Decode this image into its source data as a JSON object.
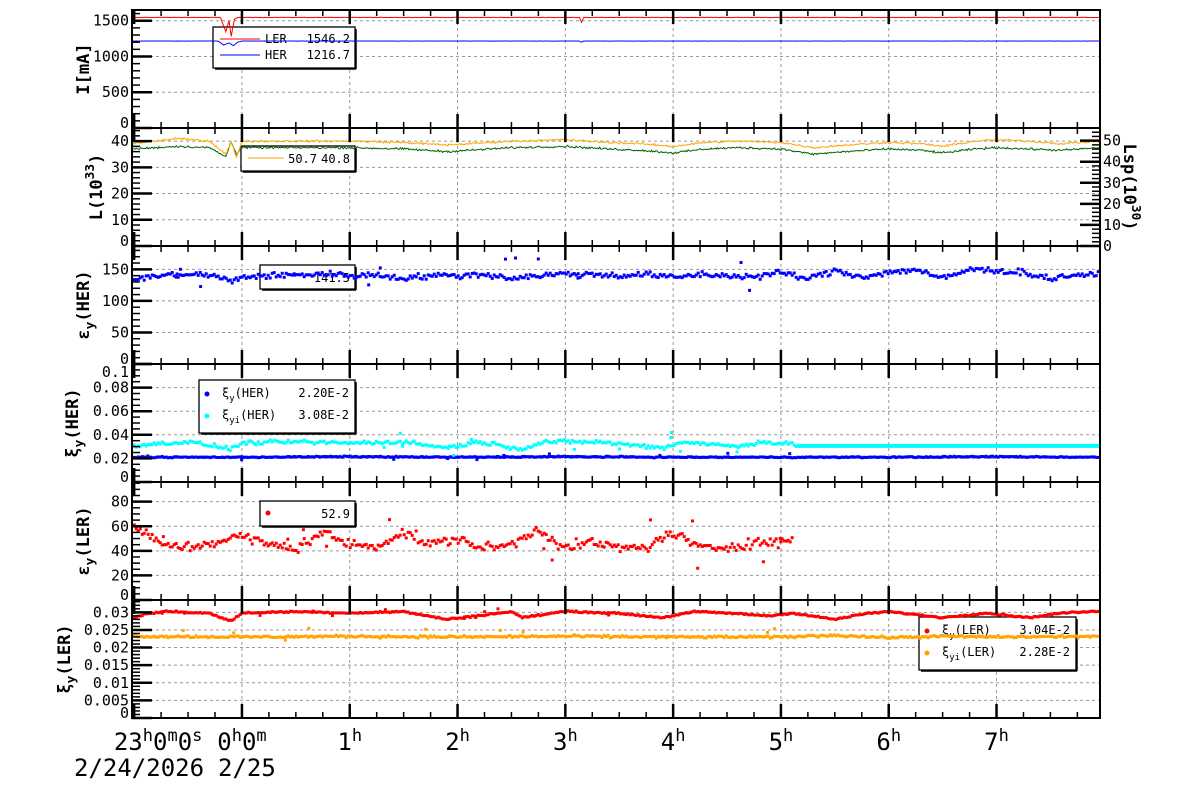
{
  "chart_data": {
    "type": "line",
    "title": "",
    "xaxis": {
      "unit": "hours since 2/25 0h",
      "range": [
        -1.02,
        7.96
      ],
      "tick_labels": [
        {
          "t": -1,
          "main": "23",
          "parts": [
            [
              "h",
              "0"
            ],
            [
              "m",
              "0"
            ],
            [
              "s",
              ""
            ]
          ]
        },
        {
          "t": 0,
          "main": "0",
          "parts": [
            [
              "h",
              "0"
            ],
            [
              "m",
              ""
            ]
          ]
        },
        {
          "t": 1,
          "main": "1",
          "parts": [
            [
              "h",
              ""
            ]
          ]
        },
        {
          "t": 2,
          "main": "2",
          "parts": [
            [
              "h",
              ""
            ]
          ]
        },
        {
          "t": 3,
          "main": "3",
          "parts": [
            [
              "h",
              ""
            ]
          ]
        },
        {
          "t": 4,
          "main": "4",
          "parts": [
            [
              "h",
              ""
            ]
          ]
        },
        {
          "t": 5,
          "main": "5",
          "parts": [
            [
              "h",
              ""
            ]
          ]
        },
        {
          "t": 6,
          "main": "6",
          "parts": [
            [
              "h",
              ""
            ]
          ]
        },
        {
          "t": 7,
          "main": "7",
          "parts": [
            [
              "h",
              ""
            ]
          ]
        }
      ],
      "dates": [
        {
          "t": -1,
          "label": "2/24/2026"
        },
        {
          "t": 0,
          "label": "2/25"
        }
      ]
    },
    "panels": [
      {
        "id": "current",
        "ylabel": [
          "I[mA]",
          "",
          ""
        ],
        "ylim": [
          0,
          1650
        ],
        "yticks": [
          0,
          500,
          1000,
          1500
        ],
        "minor": 100,
        "grid": true,
        "series": [
          {
            "name": "LER",
            "value": "1546.2",
            "color": "#ff0000",
            "kind": "line",
            "spread": 4,
            "x": [
              -1.02,
              -0.2,
              -0.15,
              -0.12,
              -0.1,
              -0.07,
              -0.04,
              0,
              3.13,
              3.15,
              3.17,
              7.96
            ],
            "y": [
              1546,
              1546,
              1350,
              1500,
              1280,
              1520,
              1546,
              1546,
              1546,
              1480,
              1546,
              1546
            ]
          },
          {
            "name": "HER",
            "value": "1216.7",
            "color": "#0000ff",
            "kind": "line",
            "spread": 1,
            "x": [
              -1.02,
              -0.22,
              -0.17,
              -0.12,
              -0.08,
              -0.04,
              0,
              3.13,
              3.15,
              3.17,
              7.96
            ],
            "y": [
              1216,
              1216,
              1160,
              1190,
              1150,
              1200,
              1216,
              1216,
              1200,
              1216,
              1216
            ]
          }
        ]
      },
      {
        "id": "luminosity",
        "ylabel": [
          "L(10",
          "33",
          ")"
        ],
        "ylim": [
          0,
          45
        ],
        "yticks": [
          0,
          10,
          20,
          30,
          40
        ],
        "minor": 2,
        "grid": true,
        "right_axis": {
          "label": [
            "Lsp(10",
            "30",
            ")"
          ],
          "ylim": [
            0,
            56
          ],
          "yticks": [
            0,
            10,
            20,
            30,
            40,
            50
          ],
          "minor": 2
        },
        "legend_values": [
          "50.7",
          "40.8"
        ],
        "series": [
          {
            "name": "L",
            "color": "#006400",
            "kind": "line",
            "spread": 0.6,
            "x": [
              -1.02,
              -0.8,
              -0.6,
              -0.3,
              -0.15,
              -0.1,
              -0.05,
              0,
              0.5,
              1,
              1.5,
              1.9,
              2.5,
              3,
              3.4,
              3.7,
              4,
              4.3,
              4.6,
              5,
              5.3,
              5.6,
              6,
              6.3,
              6.5,
              6.8,
              7,
              7.3,
              7.6,
              7.96
            ],
            "y": [
              37,
              37.5,
              38,
              37.5,
              34,
              40,
              35,
              37.5,
              37.5,
              37.5,
              37,
              36,
              37.5,
              38,
              37,
              36.5,
              35.5,
              37,
              37.5,
              37,
              35,
              36,
              37,
              36.5,
              35.5,
              37,
              37.5,
              37,
              36.5,
              37.5
            ]
          },
          {
            "name": "Lsp",
            "color": "#ffa500",
            "kind": "line",
            "spread": 0.6,
            "x": [
              -1.02,
              -0.8,
              -0.6,
              -0.3,
              -0.15,
              -0.1,
              -0.05,
              0,
              0.5,
              1,
              1.5,
              1.9,
              2.5,
              3,
              3.4,
              3.7,
              4,
              4.3,
              4.6,
              5,
              5.3,
              5.6,
              6,
              6.3,
              6.5,
              6.8,
              7,
              7.3,
              7.6,
              7.96
            ],
            "y": [
              39,
              40,
              41,
              40,
              35,
              39.5,
              34,
              40,
              40,
              40,
              39.5,
              38.5,
              40,
              40.5,
              39.5,
              39,
              38,
              39.5,
              40,
              39.5,
              37.5,
              38.5,
              39.5,
              39,
              38,
              40,
              40.5,
              40,
              39,
              40
            ]
          }
        ]
      },
      {
        "id": "emittance-her",
        "ylabel": [
          "ε",
          "y",
          "(HER)"
        ],
        "ylim": [
          0,
          187
        ],
        "yticks": [
          0,
          50,
          100,
          150
        ],
        "minor": 10,
        "grid": true,
        "legend_values": [
          "141.5"
        ],
        "series": [
          {
            "name": "εy(HER)",
            "color": "#0000ff",
            "kind": "scatter",
            "spread": 7,
            "x": [
              -1,
              -0.75,
              -0.5,
              -0.25,
              -0.1,
              0,
              0.25,
              0.5,
              0.75,
              1,
              1.25,
              1.5,
              1.75,
              2,
              2.25,
              2.5,
              2.75,
              3,
              3.25,
              3.5,
              3.75,
              4,
              4.25,
              4.5,
              4.75,
              5,
              5.25,
              5.5,
              5.75,
              6,
              6.25,
              6.5,
              6.75,
              7,
              7.25,
              7.5,
              7.75,
              7.9
            ],
            "y": [
              135,
              140,
              142,
              140,
              130,
              138,
              140,
              141,
              143,
              140,
              141,
              136,
              140,
              140,
              142,
              136,
              140,
              143,
              142,
              140,
              142,
              137,
              142,
              140,
              138,
              145,
              135,
              148,
              138,
              145,
              150,
              135,
              150,
              148,
              145,
              135,
              142,
              140
            ]
          }
        ]
      },
      {
        "id": "tune-her",
        "ylabel": [
          "ξ",
          "y",
          "(HER)"
        ],
        "ylim": [
          0,
          0.1
        ],
        "yticks": [
          0,
          0.02,
          0.04,
          0.06,
          0.08,
          0.1
        ],
        "ytick_labels": [
          "0",
          "0.02",
          "0.04",
          "0.06",
          "0.08",
          "0.1"
        ],
        "minor": 0.005,
        "grid": true,
        "series": [
          {
            "name": "ξy(HER)",
            "label": [
              "ξ",
              "y",
              "(HER)"
            ],
            "value": "2.20E-2",
            "color": "#0000ff",
            "kind": "scatter",
            "spread": 0.0007,
            "x": [
              -1,
              0,
              1,
              2,
              3,
              4,
              5,
              6,
              7,
              7.9
            ],
            "y": [
              0.021,
              0.021,
              0.0215,
              0.021,
              0.0215,
              0.021,
              0.021,
              0.021,
              0.0215,
              0.021
            ]
          },
          {
            "name": "ξyi(HER)",
            "label": [
              "ξ",
              "yi",
              "(HER)"
            ],
            "value": "3.08E-2",
            "color": "#00ffff",
            "kind": "scatter",
            "spread": 0.0025,
            "x": [
              -1,
              -0.5,
              -0.1,
              0,
              0.5,
              1,
              1.5,
              1.9,
              2.2,
              2.6,
              2.8,
              3.3,
              3.9,
              4.1,
              4.6,
              4.8,
              5.1,
              5.15,
              7.96
            ],
            "y": [
              0.031,
              0.034,
              0.028,
              0.033,
              0.034,
              0.033,
              0.034,
              0.029,
              0.034,
              0.028,
              0.034,
              0.034,
              0.029,
              0.034,
              0.03,
              0.034,
              0.032,
              0.031,
              0.031
            ],
            "flat_after": 5.15
          }
        ]
      },
      {
        "id": "emittance-ler",
        "ylabel": [
          "ε",
          "y",
          "(LER)"
        ],
        "ylim": [
          0,
          96
        ],
        "yticks": [
          0,
          20,
          40,
          60,
          80
        ],
        "minor": 5,
        "grid": true,
        "legend_values": [
          "52.9"
        ],
        "series": [
          {
            "name": "εy(LER)",
            "color": "#ff0000",
            "kind": "scatter",
            "spread": 6,
            "end": 5.12,
            "x": [
              -1,
              -0.75,
              -0.5,
              -0.25,
              0,
              0.25,
              0.5,
              0.75,
              1,
              1.25,
              1.5,
              1.75,
              2,
              2.25,
              2.5,
              2.75,
              3,
              3.25,
              3.5,
              3.75,
              4,
              4.25,
              4.5,
              4.75,
              5,
              5.12
            ],
            "y": [
              60,
              45,
              43,
              47,
              52,
              45,
              42,
              55,
              45,
              44,
              55,
              45,
              50,
              42,
              45,
              58,
              42,
              47,
              42,
              43,
              55,
              42,
              43,
              47,
              47,
              50
            ]
          }
        ]
      },
      {
        "id": "tune-ler",
        "ylabel": [
          "ξ",
          "y",
          "(LER)"
        ],
        "ylim": [
          0,
          0.0335
        ],
        "yticks": [
          0,
          0.005,
          0.01,
          0.015,
          0.02,
          0.025,
          0.03
        ],
        "ytick_labels": [
          "0",
          "0.005",
          "0.01",
          "0.015",
          "0.02",
          "0.025",
          "0.03"
        ],
        "minor": 0.001,
        "grid": true,
        "series": [
          {
            "name": "ξy(LER)",
            "label": [
              "ξ",
              "y",
              "(LER)"
            ],
            "value": "3.04E-2",
            "color": "#ff0000",
            "kind": "scatter",
            "spread": 0.0003,
            "x": [
              -1,
              -0.9,
              -0.7,
              -0.3,
              -0.1,
              0,
              0.5,
              1,
              1.5,
              1.9,
              2.5,
              2.6,
              3,
              3.5,
              3.9,
              4.2,
              4.5,
              4.9,
              5.1,
              5.5,
              5.8,
              6,
              6.5,
              6.9,
              7.3,
              7.6,
              7.96
            ],
            "y": [
              0.0285,
              0.0295,
              0.0303,
              0.0297,
              0.0275,
              0.0298,
              0.0302,
              0.0298,
              0.0302,
              0.028,
              0.0302,
              0.0285,
              0.0303,
              0.0297,
              0.0285,
              0.0302,
              0.0298,
              0.029,
              0.0298,
              0.028,
              0.0297,
              0.0302,
              0.0285,
              0.0298,
              0.0285,
              0.0298,
              0.0303
            ]
          },
          {
            "name": "ξyi(LER)",
            "label": [
              "ξ",
              "yi",
              "(LER)"
            ],
            "value": "2.28E-2",
            "color": "#ffa500",
            "kind": "scatter",
            "spread": 0.0005,
            "x": [
              -1,
              0,
              1,
              2,
              3,
              4,
              5,
              5.5,
              6,
              6.5,
              7,
              7.96
            ],
            "y": [
              0.0232,
              0.023,
              0.0232,
              0.023,
              0.0232,
              0.023,
              0.023,
              0.0235,
              0.0228,
              0.0232,
              0.023,
              0.0232
            ]
          }
        ]
      }
    ]
  }
}
